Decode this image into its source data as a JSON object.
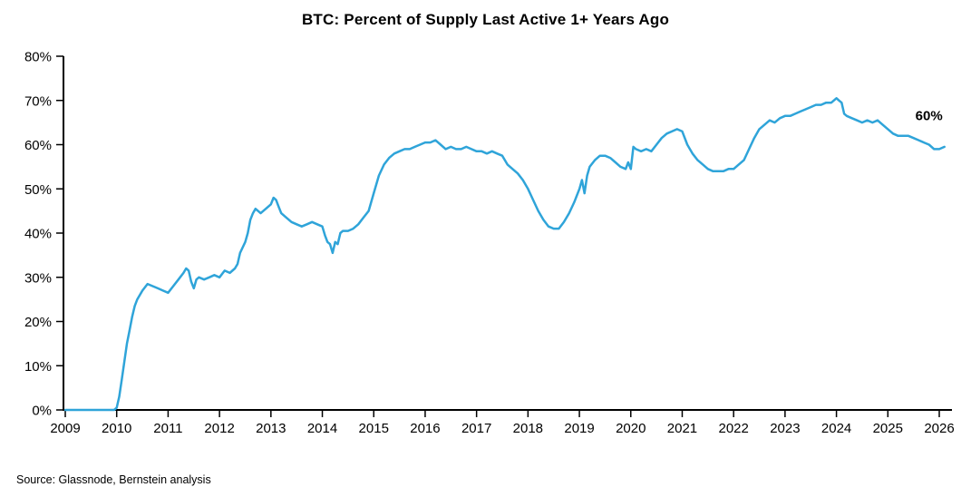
{
  "title": "BTC: Percent of Supply Last Active 1+ Years Ago",
  "source": "Source: Glassnode, Bernstein analysis",
  "chart_data": {
    "type": "line",
    "title": "BTC: Percent of Supply Last Active 1+ Years Ago",
    "xlabel": "",
    "ylabel": "",
    "xlim": [
      2009,
      2026.3
    ],
    "ylim": [
      0,
      80
    ],
    "grid": false,
    "legend": false,
    "line_color": "#2fa4d9",
    "axis_color": "#000000",
    "x_tick_values": [
      2009,
      2010,
      2011,
      2012,
      2013,
      2014,
      2015,
      2016,
      2017,
      2018,
      2019,
      2020,
      2021,
      2022,
      2023,
      2024,
      2025,
      2026
    ],
    "x_tick_labels": [
      "2009",
      "2010",
      "2011",
      "2012",
      "2013",
      "2014",
      "2015",
      "2016",
      "2017",
      "2018",
      "2019",
      "2020",
      "2021",
      "2022",
      "2023",
      "2024",
      "2025",
      "2026"
    ],
    "y_tick_values": [
      0,
      10,
      20,
      30,
      40,
      50,
      60,
      70,
      80
    ],
    "y_tick_labels": [
      "0%",
      "10%",
      "20%",
      "30%",
      "40%",
      "50%",
      "60%",
      "70%",
      "80%"
    ],
    "annotation": {
      "text": "60%",
      "x": 2025.8,
      "y": 65.5
    },
    "series": [
      {
        "name": "BTC percent of supply last active 1+ years ago",
        "x": [
          2009.0,
          2009.5,
          2009.95,
          2010.0,
          2010.05,
          2010.1,
          2010.15,
          2010.2,
          2010.25,
          2010.3,
          2010.35,
          2010.4,
          2010.5,
          2010.6,
          2010.7,
          2010.8,
          2010.9,
          2011.0,
          2011.1,
          2011.2,
          2011.3,
          2011.35,
          2011.4,
          2011.45,
          2011.5,
          2011.55,
          2011.6,
          2011.7,
          2011.8,
          2011.9,
          2012.0,
          2012.1,
          2012.2,
          2012.3,
          2012.35,
          2012.4,
          2012.5,
          2012.55,
          2012.6,
          2012.65,
          2012.7,
          2012.75,
          2012.8,
          2012.9,
          2013.0,
          2013.05,
          2013.1,
          2013.15,
          2013.2,
          2013.3,
          2013.4,
          2013.5,
          2013.6,
          2013.7,
          2013.8,
          2013.9,
          2014.0,
          2014.05,
          2014.1,
          2014.15,
          2014.2,
          2014.25,
          2014.3,
          2014.35,
          2014.4,
          2014.5,
          2014.6,
          2014.7,
          2014.8,
          2014.9,
          2015.0,
          2015.1,
          2015.2,
          2015.3,
          2015.4,
          2015.5,
          2015.6,
          2015.7,
          2015.8,
          2015.9,
          2016.0,
          2016.1,
          2016.2,
          2016.3,
          2016.4,
          2016.5,
          2016.6,
          2016.7,
          2016.8,
          2016.9,
          2017.0,
          2017.1,
          2017.2,
          2017.3,
          2017.4,
          2017.5,
          2017.6,
          2017.7,
          2017.8,
          2017.9,
          2018.0,
          2018.1,
          2018.2,
          2018.3,
          2018.4,
          2018.5,
          2018.6,
          2018.7,
          2018.8,
          2018.9,
          2019.0,
          2019.05,
          2019.1,
          2019.15,
          2019.2,
          2019.3,
          2019.4,
          2019.5,
          2019.6,
          2019.7,
          2019.8,
          2019.9,
          2019.95,
          2020.0,
          2020.05,
          2020.1,
          2020.2,
          2020.3,
          2020.4,
          2020.5,
          2020.6,
          2020.7,
          2020.8,
          2020.9,
          2021.0,
          2021.1,
          2021.2,
          2021.3,
          2021.4,
          2021.5,
          2021.6,
          2021.7,
          2021.8,
          2021.9,
          2022.0,
          2022.1,
          2022.2,
          2022.3,
          2022.4,
          2022.5,
          2022.6,
          2022.7,
          2022.8,
          2022.9,
          2023.0,
          2023.1,
          2023.2,
          2023.3,
          2023.4,
          2023.5,
          2023.6,
          2023.7,
          2023.8,
          2023.9,
          2024.0,
          2024.05,
          2024.1,
          2024.15,
          2024.2,
          2024.3,
          2024.4,
          2024.5,
          2024.6,
          2024.7,
          2024.8,
          2024.9,
          2025.0,
          2025.1,
          2025.2,
          2025.3,
          2025.4,
          2025.5,
          2025.6,
          2025.7,
          2025.8,
          2025.9,
          2026.0,
          2026.1
        ],
        "y": [
          0,
          0,
          0,
          0.5,
          3,
          7,
          11,
          15,
          18,
          21,
          23.5,
          25,
          27,
          28.5,
          28,
          27.5,
          27,
          26.5,
          28,
          29.5,
          31,
          32,
          31.5,
          29,
          27.5,
          29.5,
          30,
          29.5,
          30,
          30.5,
          30,
          31.5,
          31,
          32,
          33,
          35.5,
          38,
          40,
          43,
          44.5,
          45.5,
          45,
          44.5,
          45.5,
          46.5,
          48,
          47.5,
          46,
          44.5,
          43.5,
          42.5,
          42,
          41.5,
          42,
          42.5,
          42,
          41.5,
          39.5,
          38,
          37.5,
          35.5,
          38,
          37.5,
          40,
          40.5,
          40.5,
          41,
          42,
          43.5,
          45,
          49,
          53,
          55.5,
          57,
          58,
          58.5,
          59,
          59,
          59.5,
          60,
          60.5,
          60.5,
          61,
          60,
          59,
          59.5,
          59,
          59,
          59.5,
          59,
          58.5,
          58.5,
          58,
          58.5,
          58,
          57.5,
          55.5,
          54.5,
          53.5,
          52,
          50,
          47.5,
          45,
          43,
          41.5,
          41,
          41,
          42.5,
          44.5,
          47,
          50,
          52,
          49,
          53,
          55,
          56.5,
          57.5,
          57.5,
          57,
          56,
          55,
          54.5,
          56,
          54.5,
          59.5,
          59,
          58.5,
          59,
          58.5,
          60,
          61.5,
          62.5,
          63,
          63.5,
          63,
          60,
          58,
          56.5,
          55.5,
          54.5,
          54,
          54,
          54,
          54.5,
          54.5,
          55.5,
          56.5,
          59,
          61.5,
          63.5,
          64.5,
          65.5,
          65,
          66,
          66.5,
          66.5,
          67,
          67.5,
          68,
          68.5,
          69,
          69,
          69.5,
          69.5,
          70.5,
          70,
          69.5,
          67,
          66.5,
          66,
          65.5,
          65,
          65.5,
          65,
          65.5,
          64.5,
          63.5,
          62.5,
          62,
          62,
          62,
          61.5,
          61,
          60.5,
          60,
          59,
          59,
          59.5
        ]
      }
    ]
  }
}
